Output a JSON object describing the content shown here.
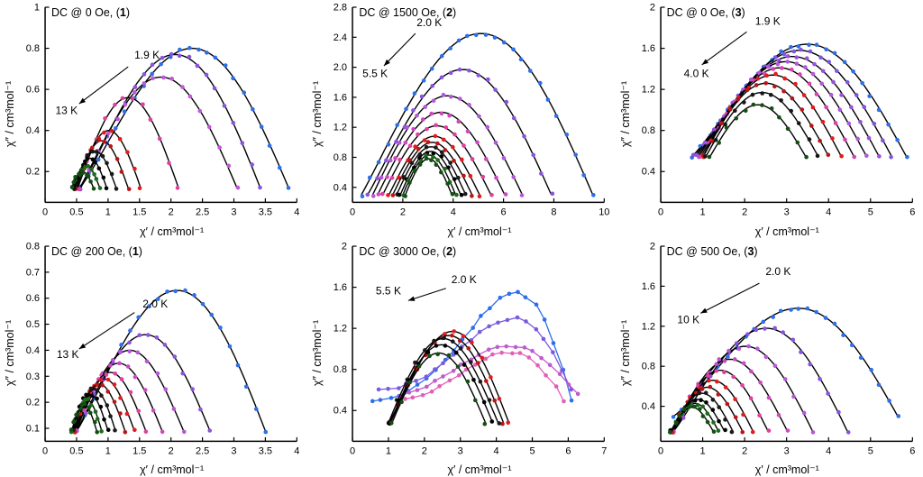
{
  "chart_data": [
    {
      "type": "scatter",
      "title_prefix": "DC @ 0 Oe, (",
      "compound": "1",
      "title_suffix": ")",
      "xlabel": "χ′ / cm³mol⁻¹",
      "ylabel": "χ″ / cm³mol⁻¹",
      "xlim": [
        0,
        4
      ],
      "ylim": [
        0.05,
        1.0
      ],
      "ybase": 0.12,
      "xticks": [
        0,
        0.5,
        1,
        1.5,
        2,
        2.5,
        3,
        3.5,
        4
      ],
      "xtick_labels": [
        "0",
        "0.5",
        "1",
        "1.5",
        "2",
        "2.5",
        "3",
        "3.5",
        "4"
      ],
      "yticks": [
        0.2,
        0.4,
        0.6,
        0.8,
        1
      ],
      "ytick_labels": [
        "0.2",
        "0.4",
        "0.6",
        "0.8",
        "1"
      ],
      "temp_labels": [
        {
          "text": "1.9 K",
          "x": 1.62,
          "y": 0.75
        },
        {
          "text": "13 K",
          "x": 0.34,
          "y": 0.48
        }
      ],
      "arrow": {
        "x1": 1.32,
        "y1": 0.71,
        "x2": 0.54,
        "y2": 0.53
      },
      "series": [
        {
          "c": "#2e6ee8",
          "x0": 0.55,
          "x1": 3.87,
          "pk": 0.8,
          "g": 1.12
        },
        {
          "c": "#8a52e0",
          "x0": 0.56,
          "x1": 3.42,
          "pk": 0.77,
          "g": 1.08
        },
        {
          "c": "#c058d8",
          "x0": 0.55,
          "x1": 3.05,
          "pk": 0.66,
          "g": 1.05
        },
        {
          "c": "#e03fa0",
          "x0": 0.52,
          "x1": 2.12,
          "pk": 0.56
        },
        {
          "c": "#e31b1b",
          "x0": 0.5,
          "x1": 1.52,
          "pk": 0.4
        },
        {
          "c": "#bb1515",
          "x0": 0.48,
          "x1": 1.32,
          "pk": 0.35
        },
        {
          "c": "#1a1a1a",
          "x0": 0.46,
          "x1": 1.13,
          "pk": 0.3
        },
        {
          "c": "#000000",
          "x0": 0.45,
          "x1": 0.98,
          "pk": 0.265
        },
        {
          "c": "#1c6b1c",
          "x0": 0.43,
          "x1": 0.87,
          "pk": 0.23
        },
        {
          "c": "#134f13",
          "x0": 0.42,
          "x1": 0.77,
          "pk": 0.2
        }
      ]
    },
    {
      "type": "scatter",
      "title_prefix": "DC @ 1500 Oe, (",
      "compound": "2",
      "title_suffix": ")",
      "xlabel": "χ′ / cm³mol⁻¹",
      "ylabel": "χ″ / cm³mol⁻¹",
      "xlim": [
        0,
        10
      ],
      "ylim": [
        0.2,
        2.8
      ],
      "ybase": 0.3,
      "xticks": [
        0,
        2,
        4,
        6,
        8,
        10
      ],
      "xtick_labels": [
        "0",
        "2",
        "4",
        "6",
        "8",
        "10"
      ],
      "yticks": [
        0.4,
        0.8,
        1.2,
        1.6,
        2.0,
        2.4,
        2.8
      ],
      "ytick_labels": [
        "0.4",
        "0.8",
        "1.2",
        "1.6",
        "2.0",
        "2.4",
        "2.8"
      ],
      "temp_labels": [
        {
          "text": "2.0 K",
          "x": 3.05,
          "y": 2.55
        },
        {
          "text": "5.5 K",
          "x": 0.9,
          "y": 1.87
        }
      ],
      "arrow": {
        "x1": 2.5,
        "y1": 2.45,
        "x2": 1.25,
        "y2": 2.02
      },
      "series": [
        {
          "c": "#2e6ee8",
          "x0": 0.35,
          "x1": 9.55,
          "pk": 2.45,
          "g": 1.05
        },
        {
          "c": "#8a52e0",
          "x0": 0.6,
          "x1": 7.9,
          "pk": 1.97,
          "g": 1.05
        },
        {
          "c": "#b457d8",
          "x0": 0.8,
          "x1": 6.75,
          "pk": 1.62
        },
        {
          "c": "#cc49c0",
          "x0": 1.0,
          "x1": 6.05,
          "pk": 1.4
        },
        {
          "c": "#e03fa0",
          "x0": 1.2,
          "x1": 5.5,
          "pk": 1.22
        },
        {
          "c": "#e31b1b",
          "x0": 1.45,
          "x1": 5.05,
          "pk": 1.08
        },
        {
          "c": "#bb1515",
          "x0": 1.6,
          "x1": 4.75,
          "pk": 1.0
        },
        {
          "c": "#1a1a1a",
          "x0": 1.75,
          "x1": 4.5,
          "pk": 0.94
        },
        {
          "c": "#000000",
          "x0": 1.9,
          "x1": 4.3,
          "pk": 0.88
        },
        {
          "c": "#1c6b1c",
          "x0": 2.0,
          "x1": 4.1,
          "pk": 0.83
        },
        {
          "c": "#134f13",
          "x0": 2.1,
          "x1": 3.95,
          "pk": 0.78
        }
      ]
    },
    {
      "type": "scatter",
      "title_prefix": "DC @ 0 Oe, (",
      "compound": "3",
      "title_suffix": ")",
      "xlabel": "χ′ / cm³mol⁻¹",
      "ylabel": "χ″ / cm³mol⁻¹",
      "xlim": [
        0,
        6
      ],
      "ylim": [
        0.1,
        2.0
      ],
      "ybase": 0.55,
      "xticks": [
        0,
        1,
        2,
        3,
        4,
        5,
        6
      ],
      "xtick_labels": [
        "0",
        "1",
        "2",
        "3",
        "4",
        "5",
        "6"
      ],
      "yticks": [
        0.4,
        0.8,
        1.2,
        1.6,
        2
      ],
      "ytick_labels": [
        "0.4",
        "0.8",
        "1.2",
        "1.6",
        "2"
      ],
      "temp_labels": [
        {
          "text": "1.9 K",
          "x": 2.55,
          "y": 1.83
        },
        {
          "text": "4.0 K",
          "x": 0.85,
          "y": 1.32
        }
      ],
      "arrow": {
        "x1": 2.05,
        "y1": 1.76,
        "x2": 0.98,
        "y2": 1.44
      },
      "series": [
        {
          "c": "#2e6ee8",
          "x0": 0.75,
          "x1": 5.85,
          "pk": 1.64,
          "g": 1.12
        },
        {
          "c": "#7d55e0",
          "x0": 0.8,
          "x1": 5.5,
          "pk": 1.58,
          "g": 1.1
        },
        {
          "c": "#9a50dd",
          "x0": 0.85,
          "x1": 5.2,
          "pk": 1.52,
          "g": 1.08
        },
        {
          "c": "#b457d8",
          "x0": 0.9,
          "x1": 4.9,
          "pk": 1.47,
          "g": 1.06
        },
        {
          "c": "#d842b0",
          "x0": 0.95,
          "x1": 4.6,
          "pk": 1.41,
          "g": 1.05
        },
        {
          "c": "#e31b1b",
          "x0": 1.0,
          "x1": 4.3,
          "pk": 1.34,
          "g": 1.02
        },
        {
          "c": "#b51616",
          "x0": 1.02,
          "x1": 4.0,
          "pk": 1.26
        },
        {
          "c": "#161616",
          "x0": 1.08,
          "x1": 3.75,
          "pk": 1.17
        },
        {
          "c": "#134f13",
          "x0": 1.18,
          "x1": 3.45,
          "pk": 1.05
        }
      ]
    },
    {
      "type": "scatter",
      "title_prefix": "DC @ 200 Oe, (",
      "compound": "1",
      "title_suffix": ")",
      "xlabel": "χ′ / cm³mol⁻¹",
      "ylabel": "χ″ / cm³mol⁻¹",
      "xlim": [
        0,
        4
      ],
      "ylim": [
        0.05,
        0.8
      ],
      "ybase": 0.09,
      "xticks": [
        0,
        0.5,
        1,
        1.5,
        2,
        2.5,
        3,
        3.5,
        4
      ],
      "xtick_labels": [
        "0",
        "0.5",
        "1",
        "1.5",
        "2",
        "2.5",
        "3",
        "3.5",
        "4"
      ],
      "yticks": [
        0.1,
        0.2,
        0.3,
        0.4,
        0.5,
        0.6,
        0.7,
        0.8
      ],
      "ytick_labels": [
        "0.1",
        "0.2",
        "0.3",
        "0.4",
        "0.5",
        "0.6",
        "0.7",
        "0.8"
      ],
      "temp_labels": [
        {
          "text": "2.0 K",
          "x": 1.75,
          "y": 0.565
        },
        {
          "text": "13 K",
          "x": 0.36,
          "y": 0.37
        }
      ],
      "arrow": {
        "x1": 1.42,
        "y1": 0.545,
        "x2": 0.54,
        "y2": 0.405
      },
      "series": [
        {
          "c": "#2e6ee8",
          "x0": 0.5,
          "x1": 3.5,
          "pk": 0.63,
          "g": 1.1
        },
        {
          "c": "#8a52e0",
          "x0": 0.5,
          "x1": 2.62,
          "pk": 0.46,
          "g": 1.05
        },
        {
          "c": "#b457d8",
          "x0": 0.49,
          "x1": 2.2,
          "pk": 0.4
        },
        {
          "c": "#cc49c0",
          "x0": 0.48,
          "x1": 1.86,
          "pk": 0.35
        },
        {
          "c": "#e03fa0",
          "x0": 0.47,
          "x1": 1.6,
          "pk": 0.315
        },
        {
          "c": "#e31b1b",
          "x0": 0.46,
          "x1": 1.42,
          "pk": 0.29
        },
        {
          "c": "#bb1515",
          "x0": 0.45,
          "x1": 1.27,
          "pk": 0.27
        },
        {
          "c": "#1a1a1a",
          "x0": 0.44,
          "x1": 1.12,
          "pk": 0.25
        },
        {
          "c": "#000000",
          "x0": 0.43,
          "x1": 1.0,
          "pk": 0.23
        },
        {
          "c": "#1c6b1c",
          "x0": 0.43,
          "x1": 0.9,
          "pk": 0.21
        },
        {
          "c": "#134f13",
          "x0": 0.42,
          "x1": 0.82,
          "pk": 0.19
        }
      ]
    },
    {
      "type": "scatter",
      "title_prefix": "DC @ 3000 Oe, (",
      "compound": "2",
      "title_suffix": ")",
      "xlabel": "χ′ / cm³mol⁻¹",
      "ylabel": "χ″ / cm³mol⁻¹",
      "xlim": [
        0,
        7
      ],
      "ylim": [
        0.1,
        2.0
      ],
      "ybase": 0.28,
      "xticks": [
        0,
        1,
        2,
        3,
        4,
        5,
        6,
        7
      ],
      "xtick_labels": [
        "0",
        "1",
        "2",
        "3",
        "4",
        "5",
        "6",
        "7"
      ],
      "yticks": [
        0.4,
        0.8,
        1.2,
        1.6,
        2
      ],
      "ytick_labels": [
        "0.4",
        "0.8",
        "1.2",
        "1.6",
        "2"
      ],
      "temp_labels": [
        {
          "text": "2.0 K",
          "x": 3.1,
          "y": 1.64
        },
        {
          "text": "5.5 K",
          "x": 1.0,
          "y": 1.53
        }
      ],
      "arrow": {
        "x1": 2.6,
        "y1": 1.59,
        "x2": 1.55,
        "y2": 1.47
      },
      "series": [
        {
          "c": "#2e6ee8",
          "x0": 0.55,
          "x1": 6.1,
          "pk": 1.55,
          "g": 2.1,
          "yb": 0.5,
          "join": true
        },
        {
          "c": "#7a5ae0",
          "x0": 0.75,
          "x1": 6.1,
          "pk": 1.3,
          "g": 1.9,
          "yb": 0.6,
          "join": true
        },
        {
          "c": "#c05ad0",
          "x0": 1.3,
          "x1": 6.25,
          "pk": 1.03,
          "g": 1.5,
          "yb": 0.55,
          "join": true
        },
        {
          "c": "#e060b8",
          "x0": 1.45,
          "x1": 5.9,
          "pk": 0.97,
          "g": 1.6,
          "yb": 0.5,
          "join": true
        },
        {
          "c": "#e31b1b",
          "x0": 1.0,
          "x1": 4.35,
          "pk": 1.17,
          "g": 1.1
        },
        {
          "c": "#bb1515",
          "x0": 1.05,
          "x1": 4.2,
          "pk": 1.13,
          "g": 1.05
        },
        {
          "c": "#1a1a1a",
          "x0": 1.0,
          "x1": 4.05,
          "pk": 1.1
        },
        {
          "c": "#000000",
          "x0": 1.05,
          "x1": 3.9,
          "pk": 1.04
        },
        {
          "c": "#134f13",
          "x0": 1.1,
          "x1": 3.7,
          "pk": 0.96
        }
      ]
    },
    {
      "type": "scatter",
      "title_prefix": "DC @ 500 Oe, (",
      "compound": "3",
      "title_suffix": ")",
      "xlabel": "χ′ / cm³mol⁻¹",
      "ylabel": "χ″ / cm³mol⁻¹",
      "xlim": [
        0,
        6
      ],
      "ylim": [
        0.05,
        2.0
      ],
      "ybase": 0.15,
      "xticks": [
        0,
        1,
        2,
        3,
        4,
        5,
        6
      ],
      "xtick_labels": [
        "0",
        "1",
        "2",
        "3",
        "4",
        "5",
        "6"
      ],
      "yticks": [
        0.4,
        0.8,
        1.2,
        1.6,
        2
      ],
      "ytick_labels": [
        "0.4",
        "0.8",
        "1.2",
        "1.6",
        "2"
      ],
      "temp_labels": [
        {
          "text": "2.0 K",
          "x": 2.8,
          "y": 1.71
        },
        {
          "text": "10 K",
          "x": 0.66,
          "y": 1.23
        }
      ],
      "arrow": {
        "x1": 2.35,
        "y1": 1.63,
        "x2": 0.95,
        "y2": 1.33
      },
      "series": [
        {
          "c": "#2e6ee8",
          "x0": 0.3,
          "x1": 5.65,
          "pk": 1.38,
          "g": 1.18,
          "yb": 0.3
        },
        {
          "c": "#8a52e0",
          "x0": 0.3,
          "x1": 4.45,
          "pk": 1.18,
          "g": 1.1
        },
        {
          "c": "#b457d8",
          "x0": 0.3,
          "x1": 3.62,
          "pk": 1.0,
          "g": 1.05
        },
        {
          "c": "#cc49c0",
          "x0": 0.28,
          "x1": 3.02,
          "pk": 0.87
        },
        {
          "c": "#e03fa0",
          "x0": 0.28,
          "x1": 2.56,
          "pk": 0.76
        },
        {
          "c": "#e31b1b",
          "x0": 0.27,
          "x1": 2.2,
          "pk": 0.66
        },
        {
          "c": "#bb1515",
          "x0": 0.26,
          "x1": 1.95,
          "pk": 0.59
        },
        {
          "c": "#1a1a1a",
          "x0": 0.25,
          "x1": 1.72,
          "pk": 0.53
        },
        {
          "c": "#000000",
          "x0": 0.25,
          "x1": 1.52,
          "pk": 0.47
        },
        {
          "c": "#1c6b1c",
          "x0": 0.24,
          "x1": 1.38,
          "pk": 0.43
        },
        {
          "c": "#134f13",
          "x0": 0.24,
          "x1": 1.25,
          "pk": 0.39
        }
      ]
    }
  ]
}
